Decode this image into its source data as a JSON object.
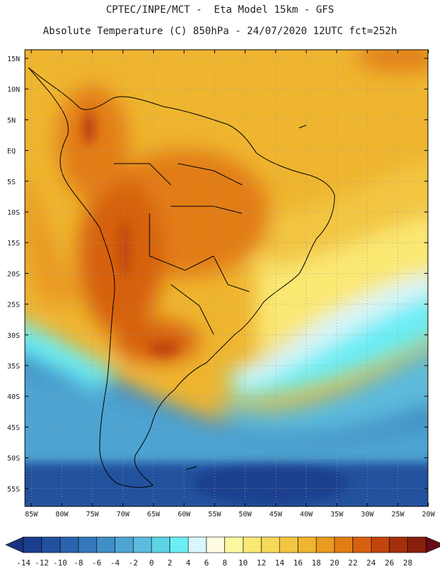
{
  "header": {
    "line1": "CPTEC/INPE/MCT -  Eta Model 15km - GFS",
    "line2": "Absolute Temperature (C) 850hPa - 24/07/2020 12UTC fct=252h"
  },
  "axes": {
    "lat_labels": [
      "15N",
      "10N",
      "5N",
      "EQ",
      "5S",
      "10S",
      "15S",
      "20S",
      "25S",
      "30S",
      "35S",
      "40S",
      "45S",
      "50S",
      "55S"
    ],
    "lon_labels": [
      "85W",
      "80W",
      "75W",
      "70W",
      "65W",
      "60W",
      "55W",
      "50W",
      "45W",
      "40W",
      "35W",
      "30W",
      "25W",
      "20W"
    ]
  },
  "colorbar": {
    "labels": [
      "-14",
      "-12",
      "-10",
      "-8",
      "-6",
      "-4",
      "-2",
      "0",
      "2",
      "4",
      "6",
      "8",
      "10",
      "12",
      "14",
      "16",
      "18",
      "20",
      "22",
      "24",
      "26",
      "28"
    ],
    "colors": [
      "#1b3f8f",
      "#23519e",
      "#2b64ad",
      "#3578ba",
      "#418dc6",
      "#4ea4d2",
      "#5cbbdc",
      "#5dd3e6",
      "#6bedf4",
      "#d8f6fb",
      "#fffbe3",
      "#fdf7a0",
      "#fae873",
      "#f6d85a",
      "#f2c643",
      "#efb52f",
      "#e99a20",
      "#e27d15",
      "#d6600f",
      "#c1440d",
      "#a52f0d",
      "#87200d"
    ],
    "under_color": "#1a3380",
    "over_color": "#6a0a1a"
  }
}
